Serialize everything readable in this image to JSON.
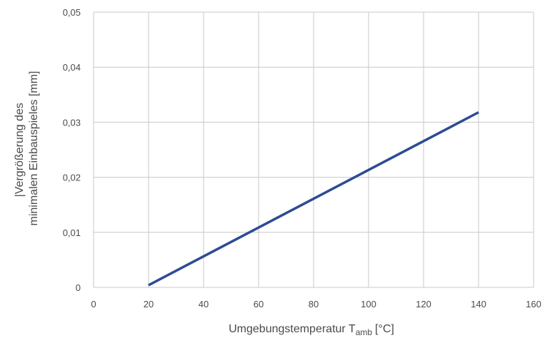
{
  "chart_data": {
    "type": "line",
    "xlabel": "Umgebungstemperatur T",
    "xlabel_sub": "amb",
    "xlabel_unit": "[°C]",
    "ylabel_line1": "|Vergrößerung des",
    "ylabel_line2": "minimalen Einbauspieles [mm]",
    "x_ticks": [
      0,
      20,
      40,
      60,
      80,
      100,
      120,
      140,
      160
    ],
    "x_tick_labels": [
      "0",
      "20",
      "40",
      "60",
      "80",
      "100",
      "120",
      "140",
      "160"
    ],
    "y_ticks": [
      0,
      0.01,
      0.02,
      0.03,
      0.04,
      0.05
    ],
    "y_tick_labels": [
      "0",
      "0,01",
      "0,02",
      "0,03",
      "0,04",
      "0,05"
    ],
    "xlim": [
      0,
      160
    ],
    "ylim": [
      0,
      0.05
    ],
    "grid": true,
    "series": [
      {
        "color": "#2e4b94",
        "x": [
          20,
          140
        ],
        "y": [
          0.0004,
          0.0318
        ]
      }
    ]
  }
}
